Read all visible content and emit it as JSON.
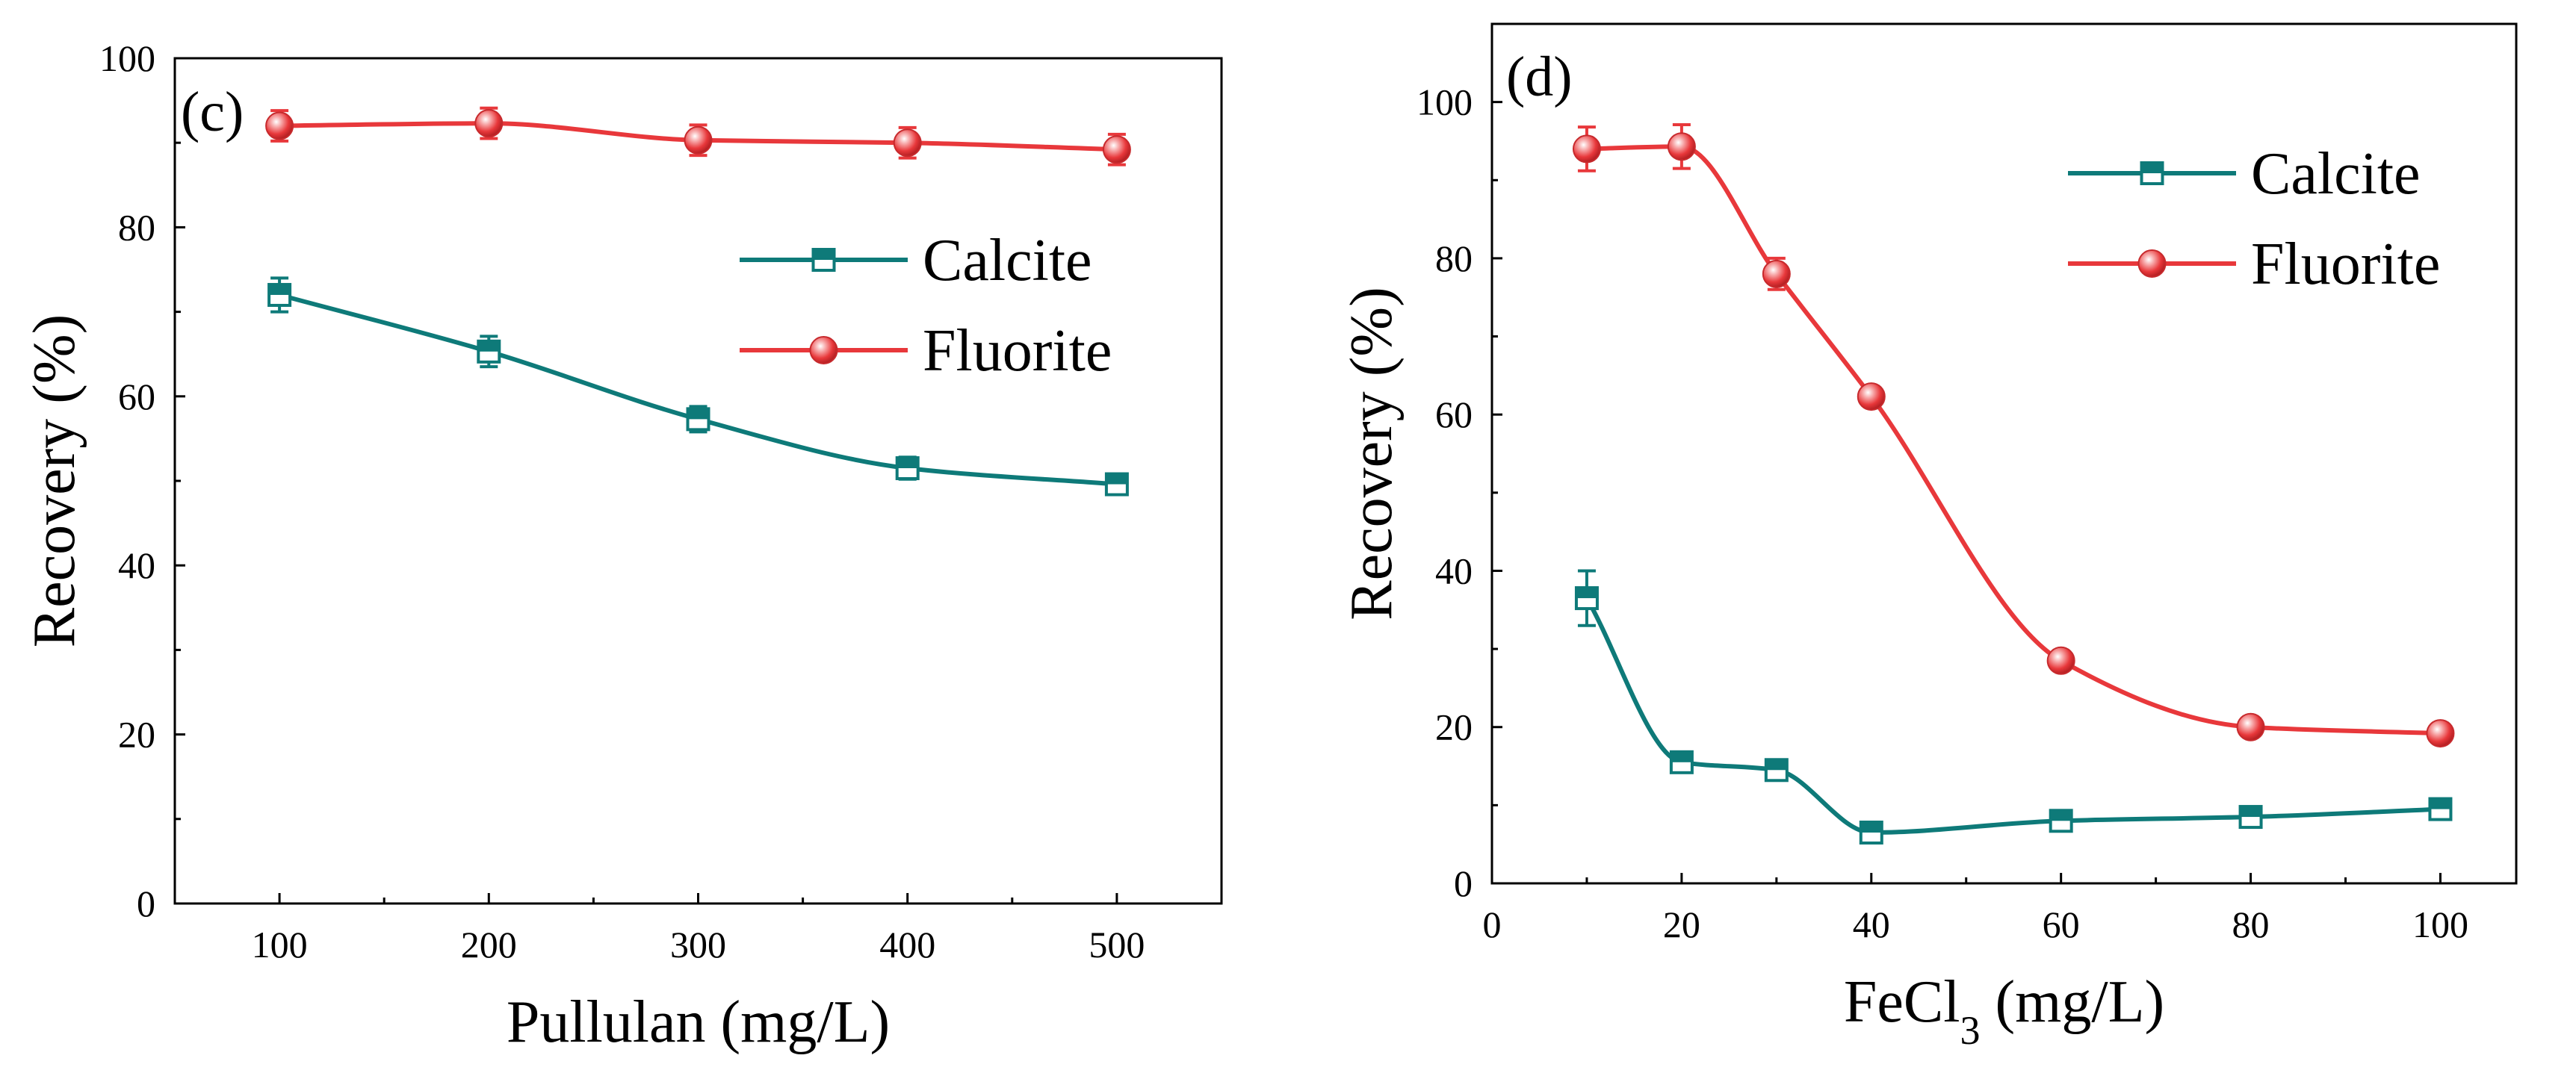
{
  "chart_data": [
    {
      "type": "line",
      "panel_label": "(c)",
      "xlabel": "Pullulan (mg/L)",
      "ylabel": "Recovery (%)",
      "xlim": [
        50,
        550
      ],
      "ylim": [
        0,
        100
      ],
      "xticks": [
        "100",
        "200",
        "300",
        "400",
        "500"
      ],
      "yticks": [
        "0",
        "20",
        "40",
        "60",
        "80",
        "100"
      ],
      "legend_position": "center-right",
      "series": [
        {
          "name": "Calcite",
          "color": "#0e7a79",
          "marker": "square-half-filled",
          "x": [
            100,
            200,
            300,
            400,
            500
          ],
          "values": [
            72.0,
            65.3,
            57.3,
            51.5,
            49.6
          ],
          "error": [
            2.0,
            1.8,
            1.5,
            1.3,
            1.2
          ]
        },
        {
          "name": "Fluorite",
          "color": "#e8383b",
          "marker": "sphere",
          "x": [
            100,
            200,
            300,
            400,
            500
          ],
          "values": [
            92.0,
            92.3,
            90.3,
            90.0,
            89.2
          ],
          "error": [
            1.8,
            1.8,
            1.8,
            1.8,
            1.8
          ]
        }
      ]
    },
    {
      "type": "line",
      "panel_label": "(d)",
      "xlabel": "FeCl3 (mg/L)",
      "xlabel_main": "FeCl",
      "xlabel_sub": "3",
      "xlabel_tail": " (mg/L)",
      "ylabel": "Recovery (%)",
      "xlim": [
        0,
        108
      ],
      "ylim": [
        0,
        110
      ],
      "xticks": [
        "0",
        "20",
        "40",
        "60",
        "80",
        "100"
      ],
      "yticks": [
        "0",
        "20",
        "40",
        "60",
        "80",
        "100"
      ],
      "legend_position": "top-right",
      "series": [
        {
          "name": "Calcite",
          "color": "#0e7a79",
          "marker": "square-half-filled",
          "x": [
            10,
            20,
            30,
            40,
            60,
            80,
            100
          ],
          "values": [
            36.5,
            15.5,
            14.5,
            6.5,
            8.0,
            8.5,
            9.5
          ],
          "error": [
            3.5,
            1.2,
            1.2,
            1.2,
            1.2,
            1.2,
            1.2
          ]
        },
        {
          "name": "Fluorite",
          "color": "#e8383b",
          "marker": "sphere",
          "x": [
            10,
            20,
            30,
            40,
            60,
            80,
            100
          ],
          "values": [
            94.0,
            94.3,
            78.0,
            62.3,
            28.5,
            20.0,
            19.2
          ],
          "error": [
            2.8,
            2.8,
            2.0,
            1.2,
            0.8,
            0.8,
            0.8
          ]
        }
      ]
    }
  ]
}
